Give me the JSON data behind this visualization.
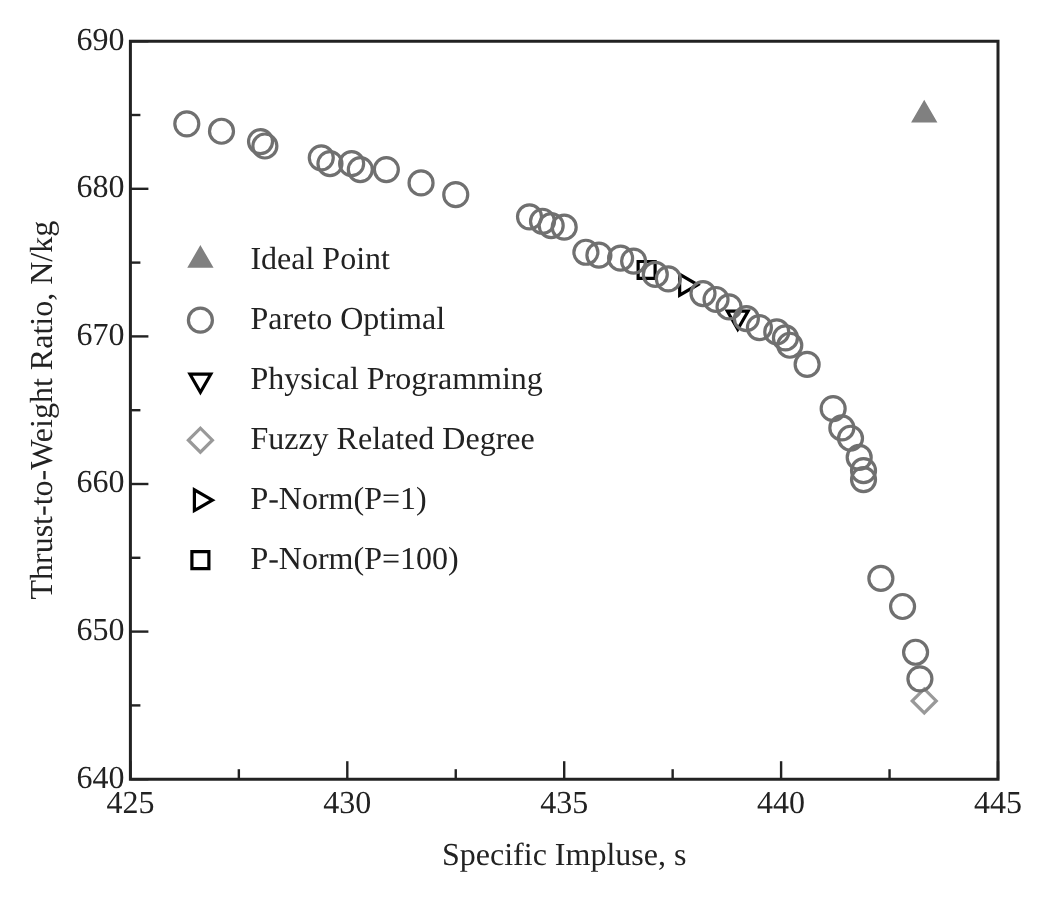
{
  "chart_data": {
    "type": "scatter",
    "xlabel": "Specific Impluse, s",
    "ylabel": "Thrust-to-Weight Ratio, N/kg",
    "xlim": [
      425,
      445
    ],
    "ylim": [
      640,
      690
    ],
    "xticks": [
      425,
      {
        "value": 427.5,
        "label": null
      },
      430,
      {
        "value": 432.5,
        "label": null
      },
      435,
      {
        "value": 437.5,
        "label": null
      },
      440,
      {
        "value": 442.5,
        "label": null
      },
      445
    ],
    "yticks": [
      640,
      {
        "value": 645,
        "label": null
      },
      650,
      {
        "value": 655,
        "label": null
      },
      660,
      {
        "value": 665,
        "label": null
      },
      670,
      {
        "value": 675,
        "label": null
      },
      680,
      {
        "value": 685,
        "label": null
      },
      690
    ],
    "grid": false,
    "legend": "left",
    "series": [
      {
        "name": "Ideal Point",
        "color": "#808080",
        "marker": "triangle",
        "x": [
          443.3
        ],
        "values": [
          685.0
        ]
      },
      {
        "name": "Pareto Optimal",
        "color": "#707070",
        "marker": "circle",
        "x": [
          426.3,
          427.1,
          428.0,
          428.1,
          429.4,
          429.6,
          430.1,
          430.3,
          430.9,
          431.7,
          432.5,
          434.2,
          434.5,
          434.7,
          435.0,
          435.5,
          435.8,
          436.3,
          436.6,
          437.1,
          437.4,
          438.2,
          438.5,
          438.8,
          439.2,
          439.5,
          439.9,
          440.1,
          440.2,
          440.6,
          441.2,
          441.4,
          441.6,
          441.8,
          441.9,
          441.9,
          442.3,
          442.8,
          443.1,
          443.2
        ],
        "values": [
          684.4,
          683.9,
          683.2,
          682.9,
          682.1,
          681.7,
          681.7,
          681.3,
          681.3,
          680.4,
          679.6,
          678.1,
          677.8,
          677.5,
          677.4,
          675.7,
          675.5,
          675.3,
          675.1,
          674.2,
          673.9,
          672.9,
          672.5,
          672.0,
          671.2,
          670.6,
          670.3,
          669.9,
          669.4,
          668.1,
          665.1,
          663.8,
          663.1,
          661.8,
          660.9,
          660.3,
          653.6,
          651.7,
          648.6,
          646.8
        ]
      },
      {
        "name": "Physical Programming",
        "color": "#000000",
        "marker": "triangle-down",
        "x": [
          439.0
        ],
        "values": [
          671.3
        ]
      },
      {
        "name": "Fuzzy Related Degree",
        "color": "#999999",
        "marker": "diamond",
        "x": [
          443.3
        ],
        "values": [
          645.3
        ]
      },
      {
        "name": "P-Norm(P=1)",
        "color": "#000000",
        "marker": "triangle-right",
        "x": [
          437.8
        ],
        "values": [
          673.5
        ]
      },
      {
        "name": "P-Norm(P=100)",
        "color": "#000000",
        "marker": "square",
        "x": [
          436.9
        ],
        "values": [
          674.5
        ]
      }
    ]
  }
}
